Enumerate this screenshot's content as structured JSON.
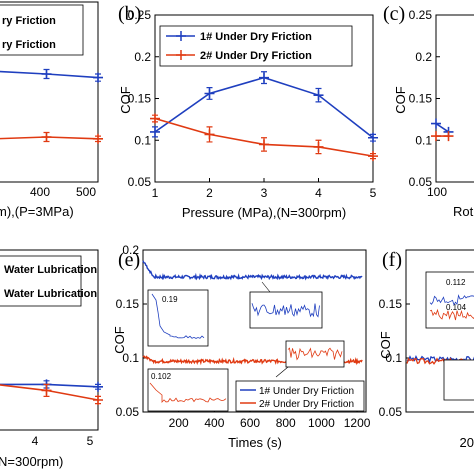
{
  "colors": {
    "blue": "#1f3fbf",
    "red": "#e03a12",
    "axis": "#000000"
  },
  "chart_data": [
    {
      "id": "a",
      "type": "line",
      "panel_label": "",
      "visible_legend": [
        "ry Friction",
        "ry Friction"
      ],
      "xticks": [
        "400",
        "500"
      ],
      "yticks": [],
      "xlabel_visible": "m),(P=3MPa)",
      "xlim": [
        300,
        500
      ],
      "ylim": [
        0.05,
        0.25
      ],
      "series": [
        {
          "x": [
            300,
            400,
            500
          ],
          "values": [
            0.173,
            0.17,
            0.166
          ],
          "err": [
            0.004,
            0.005,
            0.004
          ]
        },
        {
          "x": [
            300,
            400,
            500
          ],
          "values": [
            0.098,
            0.1,
            0.098
          ],
          "err": [
            0.003,
            0.005,
            0.003
          ]
        }
      ]
    },
    {
      "id": "b",
      "type": "line",
      "panel_label": "(b)",
      "xlabel": "Pressure (MPa),(N=300rpm)",
      "ylabel": "COF",
      "xlim": [
        1,
        5
      ],
      "ylim": [
        0.05,
        0.25
      ],
      "xticks": [
        "1",
        "2",
        "3",
        "4",
        "5"
      ],
      "yticks": [
        "0.05",
        "0.1",
        "0.15",
        "0.2",
        "0.25"
      ],
      "series": [
        {
          "name": "1# Under Dry Friction",
          "x": [
            1,
            2,
            3,
            4,
            5
          ],
          "values": [
            0.11,
            0.156,
            0.175,
            0.154,
            0.103
          ],
          "err": [
            0.006,
            0.007,
            0.007,
            0.008,
            0.004
          ]
        },
        {
          "name": "2# Under Dry Friction",
          "x": [
            1,
            2,
            3,
            4,
            5
          ],
          "values": [
            0.126,
            0.107,
            0.095,
            0.092,
            0.081
          ],
          "err": [
            0.004,
            0.009,
            0.008,
            0.008,
            0.003
          ]
        }
      ]
    },
    {
      "id": "c",
      "type": "line",
      "panel_label": "(c)",
      "ylabel": "COF",
      "xlabel_visible": "Rot",
      "xlim": [
        100,
        200
      ],
      "ylim": [
        0.05,
        0.25
      ],
      "xticks": [
        "100"
      ],
      "yticks": [
        "0.05",
        "0.1",
        "0.15",
        "0.2",
        "0.25"
      ],
      "series": [
        {
          "x": [
            100,
            125
          ],
          "values": [
            0.12,
            0.11
          ]
        },
        {
          "x": [
            100,
            125
          ],
          "values": [
            0.105,
            0.105
          ]
        }
      ]
    },
    {
      "id": "d",
      "type": "line",
      "panel_label": "",
      "visible_legend": [
        "Water Lubrication",
        "Water Lubrication"
      ],
      "xlabel_visible": "N=300rpm)",
      "xlim": [
        3,
        5
      ],
      "ylim": [
        0.05,
        0.2
      ],
      "xticks": [
        "4",
        "5"
      ],
      "yticks": [],
      "series": [
        {
          "x": [
            3,
            4,
            5
          ],
          "values": [
            0.088,
            0.088,
            0.086
          ],
          "err": [
            0.002,
            0.003,
            0.002
          ]
        },
        {
          "x": [
            3,
            4,
            5
          ],
          "values": [
            0.088,
            0.083,
            0.075
          ],
          "err": [
            0.002,
            0.005,
            0.003
          ]
        }
      ]
    },
    {
      "id": "e",
      "type": "line",
      "panel_label": "(e)",
      "xlabel": "Times (s)",
      "ylabel": "COF",
      "xlim": [
        0,
        1250
      ],
      "ylim": [
        0.05,
        0.2
      ],
      "xticks": [
        "200",
        "400",
        "600",
        "800",
        "1000",
        "1200"
      ],
      "yticks": [
        "0.05",
        "0.1",
        "0.15",
        "0.2"
      ],
      "series": [
        {
          "name": "1# Under Dry Friction",
          "level": 0.175,
          "start": 0.19
        },
        {
          "name": "2# Under Dry Friction",
          "level": 0.097,
          "start": 0.102
        }
      ],
      "insets": [
        "0.19",
        "0.102"
      ]
    },
    {
      "id": "f",
      "type": "line",
      "panel_label": "(f)",
      "ylabel": "COF",
      "xlabel_visible": "20",
      "ylim": [
        0.05,
        0.2
      ],
      "yticks": [
        "0.05",
        "0.1",
        "0.15"
      ],
      "insets": [
        "0.112",
        "0.104"
      ]
    }
  ]
}
